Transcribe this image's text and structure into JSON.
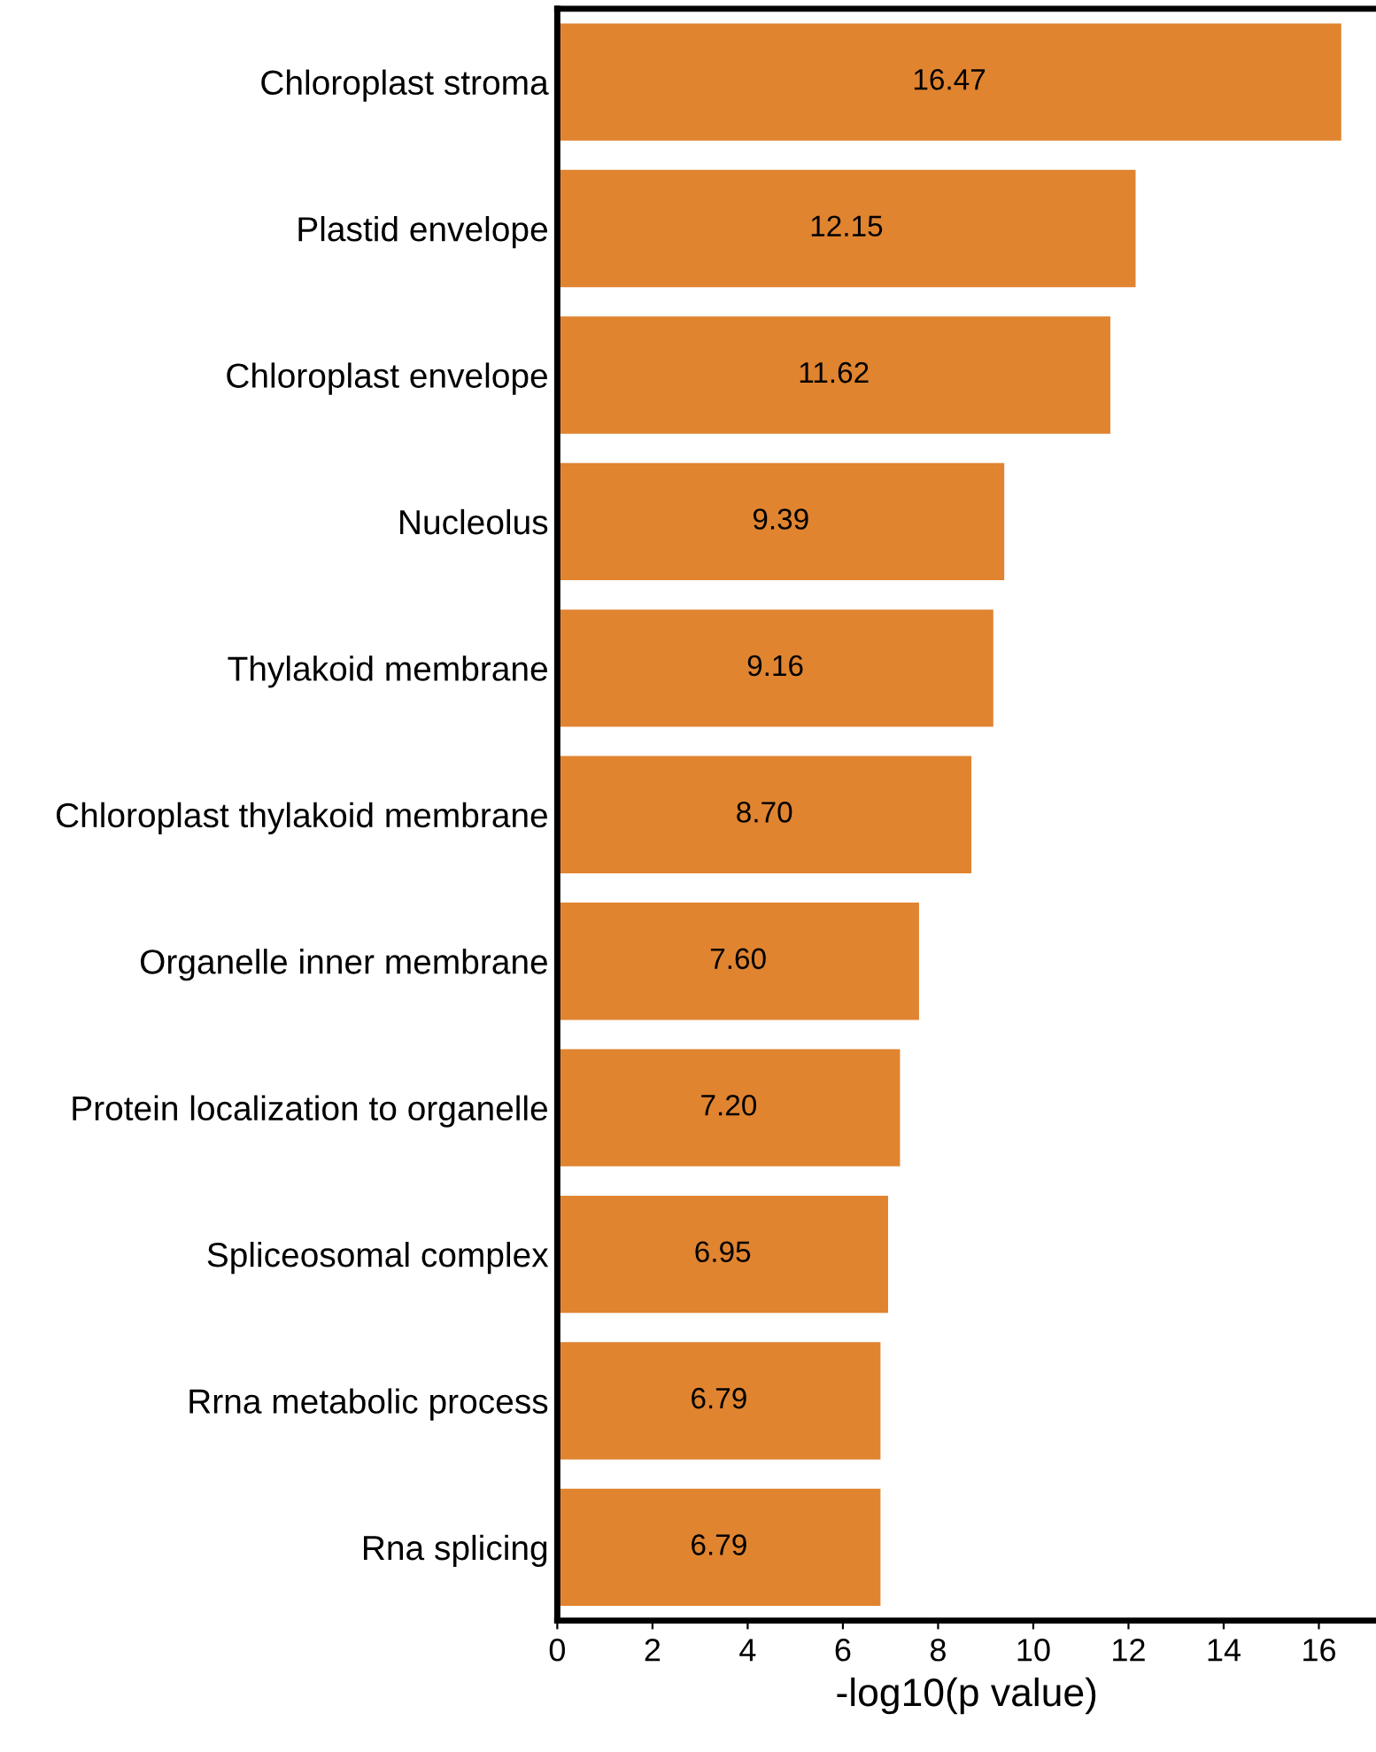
{
  "chart_data": {
    "type": "bar",
    "orientation": "horizontal",
    "xlabel": "-log10(p value)",
    "categories": [
      "Chloroplast stroma",
      "Plastid envelope",
      "Chloroplast envelope",
      "Nucleolus",
      "Thylakoid membrane",
      "Chloroplast thylakoid membrane",
      "Organelle inner membrane",
      "Protein localization to organelle",
      "Spliceosomal complex",
      "Rrna metabolic process",
      "Rna splicing"
    ],
    "values": [
      16.47,
      12.15,
      11.62,
      9.39,
      9.16,
      8.7,
      7.6,
      7.2,
      6.95,
      6.79,
      6.79
    ],
    "value_labels": [
      "16.47",
      "12.15",
      "11.62",
      "9.39",
      "9.16",
      "8.70",
      "7.60",
      "7.20",
      "6.95",
      "6.79",
      "6.79"
    ],
    "color": "#e08430",
    "xlim": [
      0,
      17.2
    ],
    "xticks": [
      0,
      2,
      4,
      6,
      8,
      10,
      12,
      14,
      16
    ],
    "grid": false,
    "legend": false
  }
}
